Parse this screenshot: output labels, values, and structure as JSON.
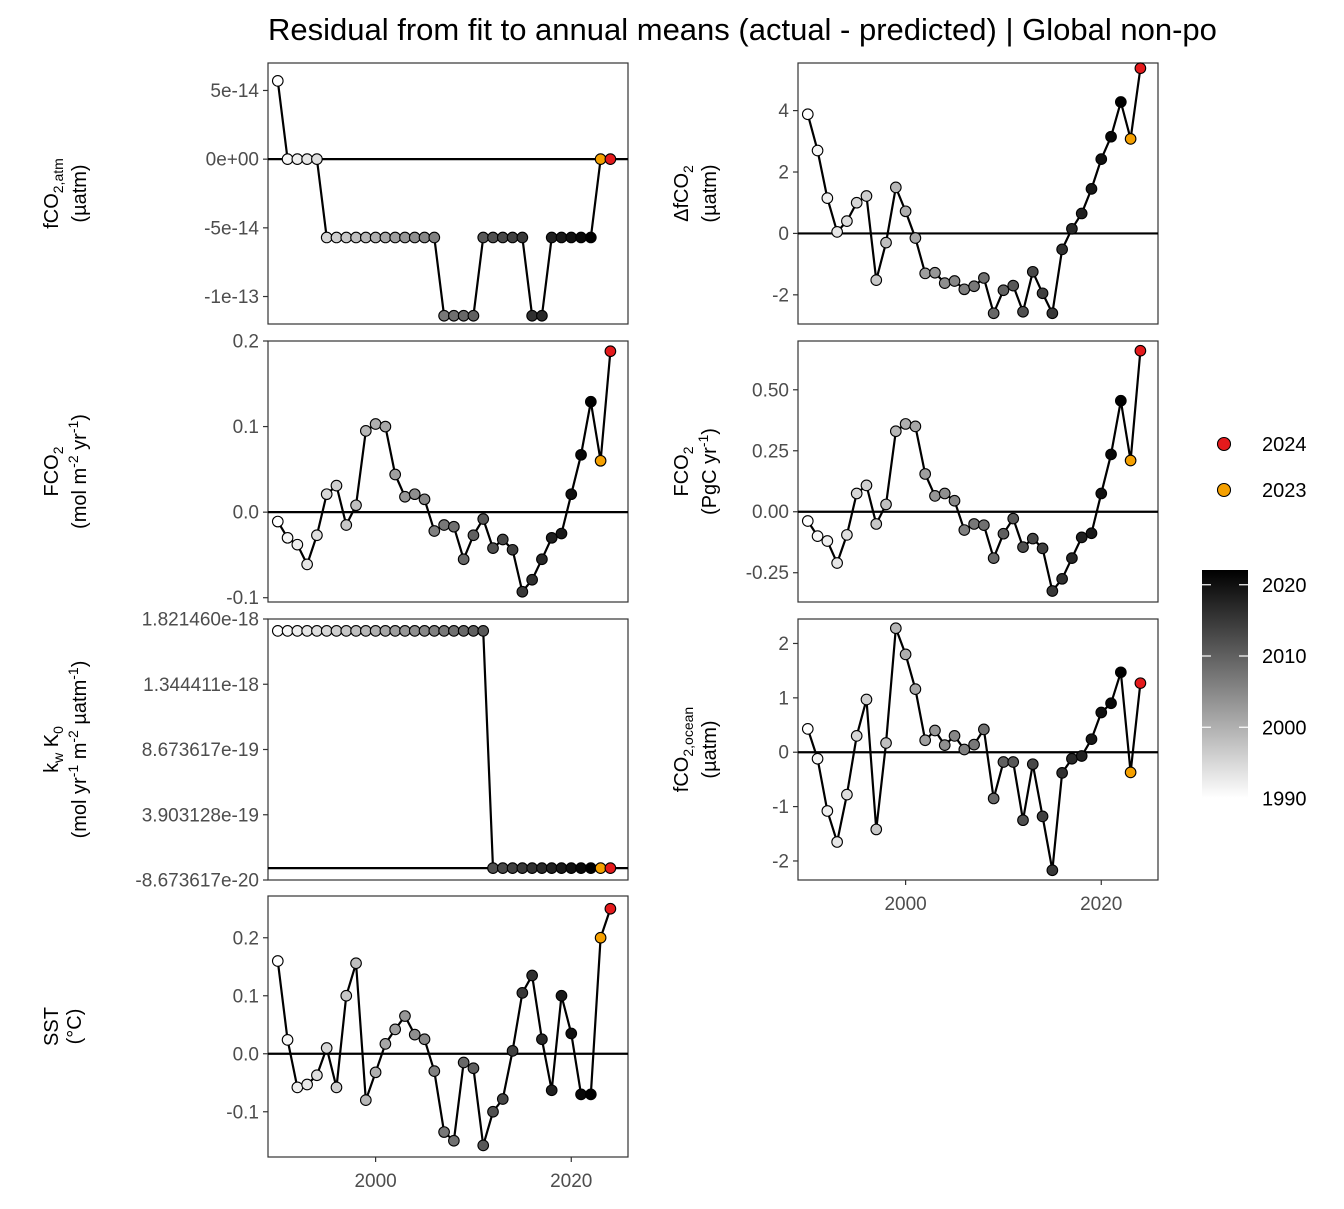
{
  "title": "Residual from fit to annual means (actual - predicted) | Global non-po",
  "chart_data": [
    {
      "type": "line",
      "id": "fco2atm",
      "ylabel_lines": [
        {
          "runs": [
            {
              "t": "fCO"
            },
            {
              "t": "2,atm",
              "s": "sub"
            }
          ]
        },
        {
          "runs": [
            {
              "t": "(µatm)"
            }
          ]
        }
      ],
      "ylim": [
        -1.2e-13,
        7e-14
      ],
      "yticks": [
        5e-14,
        0,
        -5e-14,
        -1e-13
      ],
      "ytick_labels": [
        "5e-14",
        "0e+00",
        "-5e-14",
        "-1e-13"
      ],
      "xlim": [
        1989,
        2025.8
      ],
      "values": [
        5.7e-14,
        0,
        0,
        0,
        0,
        -5.7e-14,
        -5.7e-14,
        -5.7e-14,
        -5.7e-14,
        -5.7e-14,
        -5.7e-14,
        -5.7e-14,
        -5.7e-14,
        -5.7e-14,
        -5.7e-14,
        -5.7e-14,
        -5.7e-14,
        -1.14e-13,
        -1.14e-13,
        -1.14e-13,
        -1.14e-13,
        -5.7e-14,
        -5.7e-14,
        -5.7e-14,
        -5.7e-14,
        -5.7e-14,
        -1.14e-13,
        -1.14e-13,
        -5.7e-14,
        -5.7e-14,
        -5.7e-14,
        -5.7e-14,
        -5.7e-14,
        0,
        0
      ],
      "x_ticks_shown": false
    },
    {
      "type": "line",
      "id": "dfco2",
      "ylabel_lines": [
        {
          "runs": [
            {
              "t": "ΔfCO"
            },
            {
              "t": "2",
              "s": "sub"
            }
          ]
        },
        {
          "runs": [
            {
              "t": "(µatm)"
            }
          ]
        }
      ],
      "ylim": [
        -2.95,
        5.55
      ],
      "yticks": [
        4,
        2,
        0,
        -2
      ],
      "ytick_labels": [
        "4",
        "2",
        "0",
        "-2"
      ],
      "xlim": [
        1989,
        2025.8
      ],
      "values": [
        3.88,
        2.7,
        1.15,
        0.05,
        0.4,
        1.0,
        1.22,
        -1.52,
        -0.3,
        1.5,
        0.72,
        -0.15,
        -1.3,
        -1.28,
        -1.62,
        -1.55,
        -1.82,
        -1.72,
        -1.45,
        -2.6,
        -1.85,
        -1.7,
        -2.55,
        -1.25,
        -1.95,
        -2.6,
        -0.52,
        0.15,
        0.65,
        1.45,
        2.42,
        3.15,
        4.28,
        3.08,
        5.38
      ],
      "x_ticks_shown": false
    },
    {
      "type": "line",
      "id": "fco2flux-mol",
      "ylabel_lines": [
        {
          "runs": [
            {
              "t": "FCO"
            },
            {
              "t": "2",
              "s": "sub"
            }
          ]
        },
        {
          "runs": [
            {
              "t": "(mol m"
            },
            {
              "t": "-2",
              "s": "sup"
            },
            {
              "t": " yr"
            },
            {
              "t": "-1",
              "s": "sup"
            },
            {
              "t": ")"
            }
          ]
        }
      ],
      "ylim": [
        -0.105,
        0.2
      ],
      "yticks": [
        0.2,
        0.1,
        0.0,
        -0.1
      ],
      "ytick_labels": [
        "0.2",
        "0.1",
        "0.0",
        "-0.1"
      ],
      "xlim": [
        1989,
        2025.8
      ],
      "values": [
        -0.011,
        -0.03,
        -0.038,
        -0.061,
        -0.027,
        0.021,
        0.031,
        -0.015,
        0.008,
        0.095,
        0.103,
        0.1,
        0.044,
        0.018,
        0.021,
        0.015,
        -0.022,
        -0.015,
        -0.017,
        -0.055,
        -0.027,
        -0.008,
        -0.042,
        -0.032,
        -0.044,
        -0.093,
        -0.079,
        -0.055,
        -0.03,
        -0.025,
        0.021,
        0.067,
        0.129,
        0.06,
        0.188
      ],
      "x_ticks_shown": false
    },
    {
      "type": "line",
      "id": "fco2flux-pgc",
      "ylabel_lines": [
        {
          "runs": [
            {
              "t": "FCO"
            },
            {
              "t": "2",
              "s": "sub"
            }
          ]
        },
        {
          "runs": [
            {
              "t": "(PgC yr"
            },
            {
              "t": "-1",
              "s": "sup"
            },
            {
              "t": ")"
            }
          ]
        }
      ],
      "ylim": [
        -0.37,
        0.7
      ],
      "yticks": [
        0.5,
        0.25,
        0.0,
        -0.25
      ],
      "ytick_labels": [
        "0.50",
        "0.25",
        "0.00",
        "-0.25"
      ],
      "xlim": [
        1989,
        2025.8
      ],
      "values": [
        -0.038,
        -0.1,
        -0.12,
        -0.21,
        -0.095,
        0.075,
        0.108,
        -0.05,
        0.03,
        0.33,
        0.36,
        0.35,
        0.155,
        0.065,
        0.075,
        0.045,
        -0.075,
        -0.05,
        -0.055,
        -0.19,
        -0.09,
        -0.028,
        -0.145,
        -0.11,
        -0.15,
        -0.325,
        -0.275,
        -0.19,
        -0.105,
        -0.088,
        0.075,
        0.235,
        0.455,
        0.21,
        0.66
      ],
      "x_ticks_shown": false
    },
    {
      "type": "line",
      "id": "kwk0",
      "ylabel_lines": [
        {
          "runs": [
            {
              "t": "k"
            },
            {
              "t": "w",
              "s": "sub"
            },
            {
              "t": " K"
            },
            {
              "t": "0",
              "s": "sub"
            }
          ]
        },
        {
          "runs": [
            {
              "t": "(mol yr"
            },
            {
              "t": "-1",
              "s": "sup"
            },
            {
              "t": " m"
            },
            {
              "t": "-2",
              "s": "sup"
            },
            {
              "t": " µatm"
            },
            {
              "t": "-1",
              "s": "sup"
            },
            {
              "t": ")"
            }
          ]
        }
      ],
      "ylim": [
        -8.6736e-20,
        1.8215e-18
      ],
      "yticks": [
        1.82146e-18,
        1.344411e-18,
        8.673617e-19,
        3.903128e-19,
        -8.673617e-20
      ],
      "ytick_labels": [
        "1.821460e-18",
        "1.344411e-18",
        "8.673617e-19",
        "3.903128e-19",
        "-8.673617e-20"
      ],
      "xlim": [
        1989,
        2025.8
      ],
      "values": [
        1.7347e-18,
        1.7347e-18,
        1.7347e-18,
        1.7347e-18,
        1.7347e-18,
        1.7347e-18,
        1.7347e-18,
        1.7347e-18,
        1.7347e-18,
        1.7347e-18,
        1.7347e-18,
        1.7347e-18,
        1.7347e-18,
        1.7347e-18,
        1.7347e-18,
        1.7347e-18,
        1.7347e-18,
        1.7347e-18,
        1.7347e-18,
        1.7347e-18,
        1.7347e-18,
        1.7347e-18,
        0,
        0,
        0,
        0,
        0,
        0,
        0,
        0,
        0,
        0,
        0,
        0,
        0
      ],
      "x_ticks_shown": false
    },
    {
      "type": "line",
      "id": "fco2ocean",
      "ylabel_lines": [
        {
          "runs": [
            {
              "t": "fCO"
            },
            {
              "t": "2,ocean",
              "s": "sub"
            }
          ]
        },
        {
          "runs": [
            {
              "t": "(µatm)"
            }
          ]
        }
      ],
      "ylim": [
        -2.35,
        2.45
      ],
      "yticks": [
        2,
        1,
        0,
        -1,
        -2
      ],
      "ytick_labels": [
        "2",
        "1",
        "0",
        "-1",
        "-2"
      ],
      "xlim": [
        1989,
        2025.8
      ],
      "values": [
        0.43,
        -0.12,
        -1.08,
        -1.65,
        -0.78,
        0.3,
        0.97,
        -1.42,
        0.17,
        2.28,
        1.8,
        1.16,
        0.22,
        0.4,
        0.13,
        0.3,
        0.05,
        0.14,
        0.42,
        -0.85,
        -0.18,
        -0.18,
        -1.25,
        -0.22,
        -1.18,
        -2.17,
        -0.38,
        -0.12,
        -0.07,
        0.24,
        0.73,
        0.9,
        1.47,
        -0.37,
        1.27
      ],
      "x_ticks_shown": true,
      "xticks": [
        2000,
        2020
      ],
      "xtick_labels": [
        "2000",
        "2020"
      ]
    },
    {
      "type": "line",
      "id": "sst",
      "ylabel_lines": [
        {
          "runs": [
            {
              "t": "SST"
            }
          ]
        },
        {
          "runs": [
            {
              "t": "(°C)"
            }
          ]
        }
      ],
      "ylim": [
        -0.178,
        0.272
      ],
      "yticks": [
        0.2,
        0.1,
        0.0,
        -0.1
      ],
      "ytick_labels": [
        "0.2",
        "0.1",
        "0.0",
        "-0.1"
      ],
      "xlim": [
        1989,
        2025.8
      ],
      "values": [
        0.16,
        0.024,
        -0.058,
        -0.053,
        -0.037,
        0.01,
        -0.058,
        0.1,
        0.156,
        -0.08,
        -0.032,
        0.017,
        0.042,
        0.065,
        0.033,
        0.025,
        -0.03,
        -0.135,
        -0.15,
        -0.015,
        -0.025,
        -0.158,
        -0.1,
        -0.078,
        0.005,
        0.105,
        0.135,
        0.025,
        -0.063,
        0.1,
        0.035,
        -0.07,
        -0.07,
        0.2,
        0.25
      ],
      "x_ticks_shown": true,
      "xticks": [
        2000,
        2020
      ],
      "xtick_labels": [
        "2000",
        "2020"
      ]
    }
  ],
  "years": [
    1990,
    1991,
    1992,
    1993,
    1994,
    1995,
    1996,
    1997,
    1998,
    1999,
    2000,
    2001,
    2002,
    2003,
    2004,
    2005,
    2006,
    2007,
    2008,
    2009,
    2010,
    2011,
    2012,
    2013,
    2014,
    2015,
    2016,
    2017,
    2018,
    2019,
    2020,
    2021,
    2022,
    2023,
    2024
  ],
  "legend": {
    "highlight": [
      {
        "label": "2024",
        "year": 2024,
        "color": "#e41a1c"
      },
      {
        "label": "2023",
        "year": 2023,
        "color": "#f5a000"
      }
    ],
    "colorbar": {
      "ticks": [
        2020,
        2010,
        2000,
        1990
      ],
      "tick_labels": [
        "2020",
        "2010",
        "2000",
        "1990"
      ],
      "range": [
        1990,
        2022
      ],
      "color_low": "#ffffff",
      "color_high": "#000000"
    }
  },
  "colors": {
    "line": "#000000",
    "point_stroke": "#000000"
  }
}
